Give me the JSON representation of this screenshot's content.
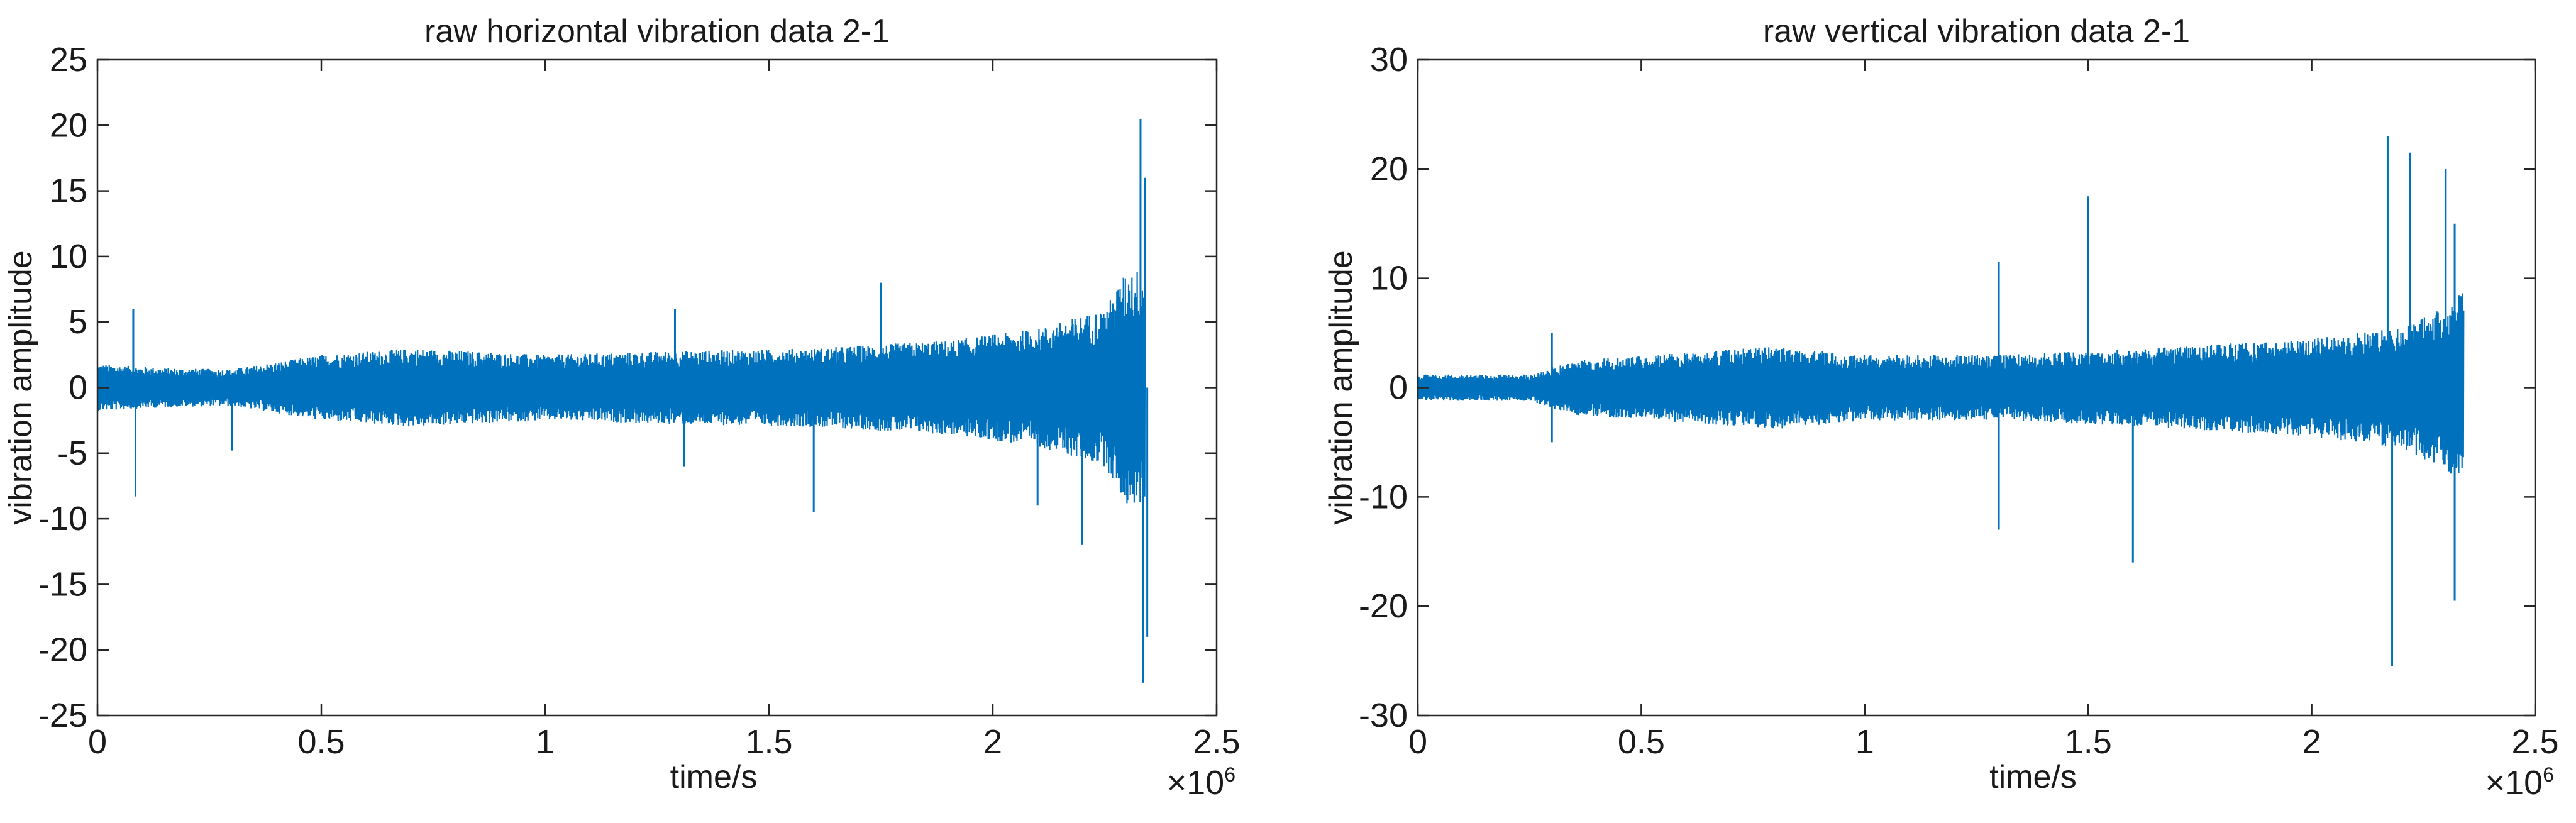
{
  "chart_data": [
    {
      "type": "line",
      "title": "raw horizontal vibration data 2-1",
      "xlabel": "time/s",
      "ylabel": "vibration amplitude",
      "x_multiplier": "×10^6",
      "xlim": [
        0,
        2.5
      ],
      "ylim": [
        -25,
        25
      ],
      "xticks": [
        0,
        0.5,
        1,
        1.5,
        2,
        2.5
      ],
      "xtick_labels": [
        "0",
        "0.5",
        "1",
        "1.5",
        "2",
        "2.5"
      ],
      "yticks": [
        25,
        20,
        15,
        10,
        5,
        0,
        -5,
        -10,
        -15,
        -20,
        -25
      ],
      "ytick_labels": [
        "25",
        "20",
        "15",
        "10",
        "5",
        "0",
        "-5",
        "-10",
        "-15",
        "-20",
        "-25"
      ],
      "grid": false,
      "color": "#0072bd",
      "x_end": 2.34,
      "envelope": [
        [
          0,
          1.8
        ],
        [
          0.15,
          1.5
        ],
        [
          0.3,
          1.4
        ],
        [
          0.5,
          2.5
        ],
        [
          0.7,
          3.0
        ],
        [
          1.0,
          2.5
        ],
        [
          1.3,
          2.8
        ],
        [
          1.6,
          3.0
        ],
        [
          1.9,
          3.6
        ],
        [
          2.1,
          4.5
        ],
        [
          2.25,
          6.0
        ],
        [
          2.3,
          9.0
        ],
        [
          2.34,
          9.0
        ]
      ],
      "spikes": [
        [
          0.08,
          6.0
        ],
        [
          0.085,
          -8.3
        ],
        [
          0.3,
          -4.8
        ],
        [
          1.29,
          6.0
        ],
        [
          1.31,
          -6.0
        ],
        [
          1.6,
          -9.5
        ],
        [
          1.75,
          8.0
        ],
        [
          2.1,
          -9.0
        ],
        [
          2.2,
          -12.0
        ],
        [
          2.33,
          20.5
        ],
        [
          2.335,
          -22.5
        ],
        [
          2.34,
          16.0
        ],
        [
          2.345,
          -19.0
        ]
      ]
    },
    {
      "type": "line",
      "title": "raw vertical vibration data 2-1",
      "xlabel": "time/s",
      "ylabel": "vibration amplitude",
      "x_multiplier": "×10^6",
      "xlim": [
        0,
        2.5
      ],
      "ylim": [
        -30,
        30
      ],
      "xticks": [
        0,
        0.5,
        1,
        1.5,
        2,
        2.5
      ],
      "xtick_labels": [
        "0",
        "0.5",
        "1",
        "1.5",
        "2",
        "2.5"
      ],
      "yticks": [
        30,
        20,
        10,
        0,
        -10,
        -20,
        -30
      ],
      "ytick_labels": [
        "30",
        "20",
        "10",
        "0",
        "-10",
        "-20",
        "-30"
      ],
      "grid": false,
      "color": "#0072bd",
      "x_end": 2.34,
      "envelope": [
        [
          0,
          1.2
        ],
        [
          0.25,
          1.2
        ],
        [
          0.35,
          2.5
        ],
        [
          0.6,
          3.2
        ],
        [
          0.8,
          3.8
        ],
        [
          1.0,
          3.0
        ],
        [
          1.3,
          3.0
        ],
        [
          1.6,
          3.5
        ],
        [
          2.0,
          4.5
        ],
        [
          2.2,
          5.5
        ],
        [
          2.3,
          7.5
        ],
        [
          2.34,
          9.0
        ]
      ],
      "spikes": [
        [
          0.3,
          5.0
        ],
        [
          0.3,
          -5.0
        ],
        [
          1.3,
          11.5
        ],
        [
          1.3,
          -13.0
        ],
        [
          1.5,
          17.5
        ],
        [
          1.6,
          -16.0
        ],
        [
          2.17,
          23.0
        ],
        [
          2.18,
          -25.5
        ],
        [
          2.22,
          21.5
        ],
        [
          2.3,
          20.0
        ],
        [
          2.32,
          15.0
        ],
        [
          2.32,
          -19.5
        ]
      ]
    }
  ]
}
